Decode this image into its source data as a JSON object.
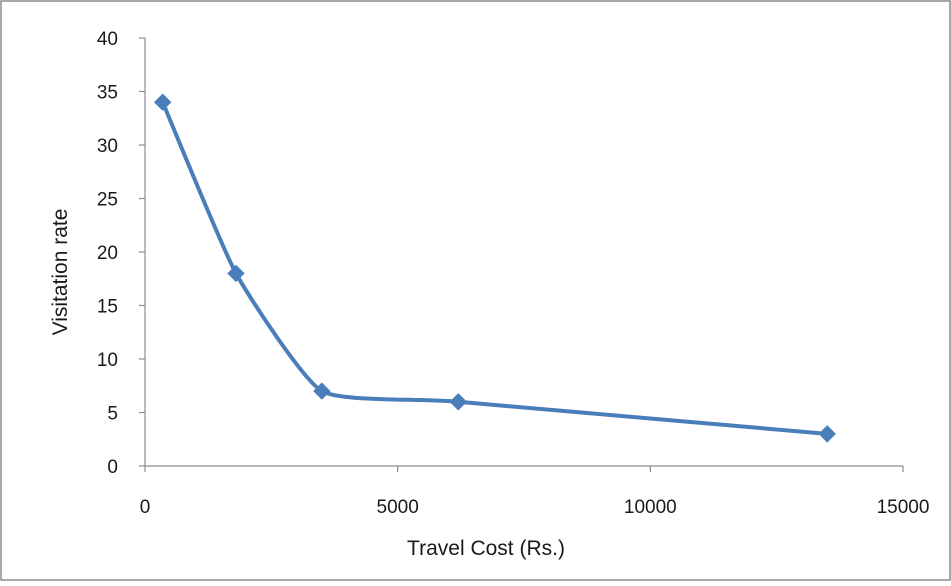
{
  "chart_data": {
    "type": "scatter",
    "xlabel": "Travel Cost (Rs.)",
    "ylabel": "Visitation rate",
    "xlim": [
      0,
      15000
    ],
    "ylim": [
      0,
      40
    ],
    "x_ticks": [
      "0",
      "5000",
      "10000",
      "15000"
    ],
    "y_ticks": [
      "0",
      "5",
      "10",
      "15",
      "20",
      "25",
      "30",
      "35",
      "40"
    ],
    "grid": false,
    "legend": "none",
    "line_style": "smoothed",
    "series": [
      {
        "color": "#4a7ebb",
        "marker": "diamond",
        "x": [
          350,
          1800,
          3500,
          6200,
          13500
        ],
        "y": [
          34,
          18,
          7,
          6,
          3
        ]
      }
    ]
  }
}
